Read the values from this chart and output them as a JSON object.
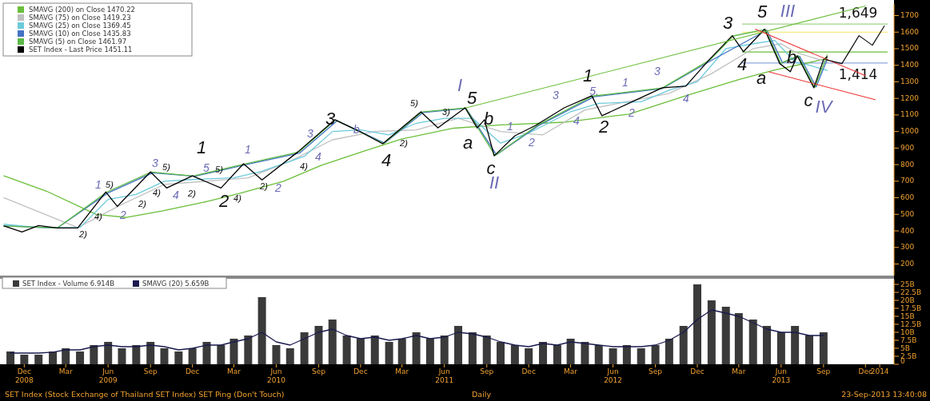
{
  "chart_data": [
    {
      "type": "line",
      "xlim": [
        "2008-11-01",
        "2014-02-15"
      ],
      "ylim": [
        130,
        1770
      ],
      "yticks": [
        200,
        300,
        400,
        500,
        600,
        700,
        800,
        900,
        1000,
        1100,
        1200,
        1300,
        1400,
        1500,
        1600,
        1700
      ],
      "tick_labels": "y",
      "legend": "top left",
      "series": [
        {
          "name": "SMAVG (200) on Close 1470.22",
          "color": "#6abf3a",
          "x": [
            "2008-11-01",
            "2009-02-01",
            "2009-05-20",
            "2009-07-25",
            "2009-10-10",
            "2010-01-20",
            "2010-04-01",
            "2010-07-01",
            "2010-09-20",
            "2010-12-20",
            "2011-03-15",
            "2011-07-05",
            "2011-10-15",
            "2012-03-01",
            "2012-07-20",
            "2012-11-20",
            "2013-03-15",
            "2013-06-01",
            "2013-09-23"
          ],
          "values": [
            732,
            640,
            500,
            481,
            520,
            580,
            630,
            700,
            795,
            880,
            955,
            1020,
            1040,
            1056,
            1105,
            1216,
            1313,
            1371,
            1440
          ]
        },
        {
          "name": "SMAVG (75) on Close 1419.23",
          "color": "#c0c0c0",
          "x": [
            "2008-11-01",
            "2009-04-10",
            "2009-07-15",
            "2009-10-15",
            "2010-01-15",
            "2010-04-15",
            "2010-07-15",
            "2010-10-15",
            "2011-01-15",
            "2011-04-15",
            "2011-07-15",
            "2011-10-15",
            "2012-01-15",
            "2012-04-15",
            "2012-07-15",
            "2012-10-15",
            "2013-01-15",
            "2013-04-15",
            "2013-06-15",
            "2013-07-15",
            "2013-09-23"
          ],
          "values": [
            600,
            420,
            560,
            680,
            700,
            720,
            820,
            950,
            1000,
            1010,
            1080,
            1000,
            980,
            1130,
            1180,
            1230,
            1350,
            1500,
            1530,
            1480,
            1419
          ]
        },
        {
          "name": "SMAVG (25) on Close 1369.45",
          "color": "#6ccadb",
          "x": [
            "2008-11-01",
            "2009-01-15",
            "2009-04-15",
            "2009-06-15",
            "2009-08-15",
            "2009-10-15",
            "2009-12-15",
            "2010-03-15",
            "2010-05-15",
            "2010-08-15",
            "2010-10-15",
            "2010-12-15",
            "2011-02-15",
            "2011-04-15",
            "2011-06-15",
            "2011-08-15",
            "2011-10-15",
            "2011-12-15",
            "2012-03-15",
            "2012-05-15",
            "2012-08-15",
            "2012-10-15",
            "2012-12-15",
            "2013-02-15",
            "2013-04-15",
            "2013-06-01",
            "2013-07-15",
            "2013-08-15",
            "2013-09-23"
          ],
          "values": [
            440,
            420,
            420,
            590,
            620,
            700,
            710,
            720,
            760,
            850,
            1000,
            1010,
            980,
            1050,
            1080,
            1080,
            930,
            990,
            1120,
            1170,
            1180,
            1250,
            1300,
            1500,
            1530,
            1550,
            1420,
            1400,
            1369
          ]
        },
        {
          "name": "SMAVG (10) on Close 1435.83",
          "color": "#4472c4",
          "x": [
            "2008-11-01",
            "2009-02-25",
            "2009-06-15",
            "2009-09-20",
            "2009-12-20",
            "2010-04-10",
            "2010-08-05",
            "2010-10-25",
            "2011-02-05",
            "2011-04-30",
            "2011-08-01",
            "2011-10-06",
            "2012-01-05",
            "2012-05-05",
            "2012-09-30",
            "2013-01-15",
            "2013-05-15",
            "2013-06-18",
            "2013-07-25",
            "2013-08-30",
            "2013-09-23"
          ],
          "values": [
            430,
            418,
            630,
            750,
            730,
            800,
            870,
            1065,
            930,
            1115,
            1140,
            860,
            1035,
            1210,
            1260,
            1430,
            1612,
            1415,
            1455,
            1270,
            1436
          ]
        },
        {
          "name": "SMAVG (5) on Close 1461.97",
          "color": "#5cb946",
          "x": [
            "2008-11-01",
            "2009-02-25",
            "2009-06-12",
            "2009-09-17",
            "2009-12-17",
            "2010-04-07",
            "2010-08-03",
            "2010-10-22",
            "2011-02-03",
            "2011-04-27",
            "2011-07-31",
            "2011-10-03",
            "2012-01-02",
            "2012-05-02",
            "2012-09-30",
            "2013-01-12",
            "2013-03-03",
            "2013-05-12",
            "2013-06-14",
            "2013-07-22",
            "2013-08-27",
            "2013-09-23"
          ],
          "values": [
            430,
            418,
            634,
            755,
            731,
            804,
            876,
            1070,
            927,
            1118,
            1142,
            855,
            1036,
            1214,
            1263,
            1433,
            1577,
            1616,
            1412,
            1457,
            1266,
            1462
          ]
        },
        {
          "name": "SET Index - Last Price 1451.11",
          "color": "#000000",
          "x": [
            "2008-11-01",
            "2008-12-10",
            "2009-01-15",
            "2009-02-25",
            "2009-04-10",
            "2009-06-10",
            "2009-07-05",
            "2009-09-15",
            "2009-10-20",
            "2009-12-15",
            "2010-02-15",
            "2010-04-05",
            "2010-05-15",
            "2010-08-01",
            "2010-10-20",
            "2010-12-15",
            "2011-02-01",
            "2011-04-25",
            "2011-06-01",
            "2011-07-30",
            "2011-08-25",
            "2011-09-10",
            "2011-10-01",
            "2011-11-15",
            "2011-12-30",
            "2012-03-01",
            "2012-04-30",
            "2012-05-22",
            "2012-08-05",
            "2012-09-30",
            "2012-11-20",
            "2013-01-10",
            "2013-03-01",
            "2013-03-25",
            "2013-05-10",
            "2013-06-12",
            "2013-07-05",
            "2013-07-20",
            "2013-08-25",
            "2013-09-15",
            "2013-09-23"
          ],
          "values": [
            430,
            393,
            432,
            418,
            418,
            635,
            548,
            756,
            659,
            732,
            659,
            805,
            708,
            877,
            1071,
            998,
            926,
            1119,
            1022,
            1143,
            1022,
            1071,
            853,
            974,
            1037,
            1143,
            1216,
            1095,
            1192,
            1264,
            1274,
            1434,
            1579,
            1482,
            1618,
            1410,
            1361,
            1458,
            1264,
            1434,
            1451
          ]
        },
        {
          "color": "#6abf3a",
          "x": [
            "2011-08-01",
            "2013-12-15"
          ],
          "values": [
            1143,
            1758
          ]
        },
        {
          "color": "#ee3333",
          "x": [
            "2013-04-20",
            "2013-12-15"
          ],
          "values": [
            1618,
            1337
          ]
        },
        {
          "color": "#ee3333",
          "x": [
            "2013-05-20",
            "2014-01-05"
          ],
          "values": [
            1360,
            1192
          ]
        },
        {
          "color": "#000000",
          "x": [
            "2013-09-20",
            "2013-10-25",
            "2013-12-01",
            "2013-12-30",
            "2014-01-25"
          ],
          "values": [
            1434,
            1410,
            1579,
            1521,
            1637
          ]
        }
      ],
      "ref_lines": [
        {
          "axis": "y",
          "value": 1649,
          "label": "1,649",
          "color": "#9fd28a"
        },
        {
          "axis": "y",
          "value": 1600,
          "color": "#f5e663"
        },
        {
          "axis": "y",
          "value": 1480,
          "color": "#6abf3a"
        },
        {
          "axis": "y",
          "value": 1414,
          "label": "1,414",
          "color": "#8fa8dc"
        }
      ],
      "annotations": [
        "1",
        "2",
        "3",
        "4",
        "5",
        "I",
        "a",
        "b",
        "c",
        "II",
        "1",
        "2",
        "3",
        "4",
        "5",
        "III",
        "a",
        "b",
        "c",
        "IV",
        "1",
        "2",
        "3",
        "4",
        "5",
        "1",
        "2",
        "3",
        "4",
        "b",
        "1",
        "2",
        "3",
        "4",
        "5.",
        "1",
        "2",
        "3",
        "4",
        "2)",
        "5)",
        "4)",
        "2)",
        "4)",
        "5)",
        "2)",
        "5)",
        "4)",
        "2)",
        "4)",
        "5)",
        "2)",
        "3)"
      ]
    },
    {
      "type": "bar",
      "xlim": [
        "2008-11-01",
        "2014-02-15"
      ],
      "ylim": [
        0,
        26.5
      ],
      "yticks": [
        0,
        {
          "value": 2.5,
          "label": "2.5B"
        },
        {
          "value": 5,
          "label": "5B"
        },
        {
          "value": 7.5,
          "label": "7.5B"
        },
        {
          "value": 10,
          "label": "10B"
        },
        {
          "value": 12.5,
          "label": "12.5B"
        },
        {
          "value": 15,
          "label": "15B"
        },
        {
          "value": 17.5,
          "label": "17.5B"
        },
        {
          "value": 20,
          "label": "20B"
        },
        {
          "value": 22.5,
          "label": "22.5B"
        },
        {
          "value": 25,
          "label": "25B"
        }
      ],
      "xticks": [
        {
          "value": "2008-12-15",
          "label": "Dec\n2008"
        },
        {
          "value": "2009-03-15",
          "label": "Mar"
        },
        {
          "value": "2009-06-15",
          "label": "Jun\n2009"
        },
        {
          "value": "2009-09-15",
          "label": "Sep"
        },
        {
          "value": "2009-12-15",
          "label": "Dec"
        },
        {
          "value": "2010-03-15",
          "label": "Mar"
        },
        {
          "value": "2010-06-15",
          "label": "Jun\n2010"
        },
        {
          "value": "2010-09-15",
          "label": "Sep"
        },
        {
          "value": "2010-12-15",
          "label": "Dec"
        },
        {
          "value": "2011-03-15",
          "label": "Mar"
        },
        {
          "value": "2011-06-15",
          "label": "Jun\n2011"
        },
        {
          "value": "2011-09-15",
          "label": "Sep"
        },
        {
          "value": "2011-12-15",
          "label": "Dec"
        },
        {
          "value": "2012-03-15",
          "label": "Mar"
        },
        {
          "value": "2012-06-15",
          "label": "Jun\n2012"
        },
        {
          "value": "2012-09-15",
          "label": "Sep"
        },
        {
          "value": "2012-12-15",
          "label": "Dec"
        },
        {
          "value": "2013-03-15",
          "label": "Mar"
        },
        {
          "value": "2013-06-15",
          "label": "Jun\n2013"
        },
        {
          "value": "2013-09-15",
          "label": "Sep"
        },
        {
          "value": "2013-12-15",
          "label": "Dec"
        },
        {
          "value": "2014-01-15",
          "label": "2014"
        }
      ],
      "legend": "top left",
      "x": [
        "2008-11-15",
        "2008-12-15",
        "2009-01-15",
        "2009-02-15",
        "2009-03-15",
        "2009-04-15",
        "2009-05-15",
        "2009-06-15",
        "2009-07-15",
        "2009-08-15",
        "2009-09-15",
        "2009-10-15",
        "2009-11-15",
        "2009-12-15",
        "2010-01-15",
        "2010-02-15",
        "2010-03-15",
        "2010-04-15",
        "2010-05-15",
        "2010-06-15",
        "2010-07-15",
        "2010-08-15",
        "2010-09-15",
        "2010-10-15",
        "2010-11-15",
        "2010-12-15",
        "2011-01-15",
        "2011-02-15",
        "2011-03-15",
        "2011-04-15",
        "2011-05-15",
        "2011-06-15",
        "2011-07-15",
        "2011-08-15",
        "2011-09-15",
        "2011-10-15",
        "2011-11-15",
        "2011-12-15",
        "2012-01-15",
        "2012-02-15",
        "2012-03-15",
        "2012-04-15",
        "2012-05-15",
        "2012-06-15",
        "2012-07-15",
        "2012-08-15",
        "2012-09-15",
        "2012-10-15",
        "2012-11-15",
        "2012-12-15",
        "2013-01-15",
        "2013-02-15",
        "2013-03-15",
        "2013-04-15",
        "2013-05-15",
        "2013-06-15",
        "2013-07-15",
        "2013-08-15",
        "2013-09-15"
      ],
      "series": [
        {
          "name": "SET Index - Volume 6.914B",
          "color": "#3a3a3a",
          "values": [
            4,
            3,
            3,
            4,
            5,
            4,
            6,
            7,
            5,
            6,
            7,
            5,
            4,
            5,
            7,
            6,
            8,
            9,
            21,
            6,
            5,
            10,
            12,
            14,
            9,
            8,
            9,
            7,
            8,
            10,
            8,
            9,
            12,
            10,
            9,
            7,
            6,
            5,
            7,
            6,
            8,
            7,
            6,
            5,
            6,
            5,
            6,
            8,
            12,
            25,
            20,
            18,
            16,
            14,
            12,
            10,
            12,
            9,
            10
          ]
        },
        {
          "name": "SMAVG (20) 5.659B",
          "color": "#1a1a4e",
          "type": "line",
          "values": [
            3.5,
            3.5,
            3.5,
            3.8,
            4.5,
            4.5,
            5.5,
            6,
            5.5,
            5.5,
            6,
            5.5,
            4.5,
            5,
            6,
            6,
            7,
            8,
            10,
            7,
            6,
            8,
            10,
            11,
            9,
            8,
            8.5,
            7.5,
            8,
            9,
            8,
            8.5,
            10,
            9.5,
            8.5,
            7,
            6,
            5.5,
            6.5,
            6,
            7,
            6.5,
            6,
            5.5,
            5.5,
            5.5,
            6,
            7.5,
            10,
            14,
            17,
            16,
            15,
            13,
            11,
            10,
            10,
            9,
            9
          ]
        }
      ],
      "annotations": [
        "SET Index (Stock Exchange of Thailand SET Index) SET Ping (Don't Touch)",
        "Daily",
        "23-Sep-2013 13:40:08"
      ]
    }
  ]
}
